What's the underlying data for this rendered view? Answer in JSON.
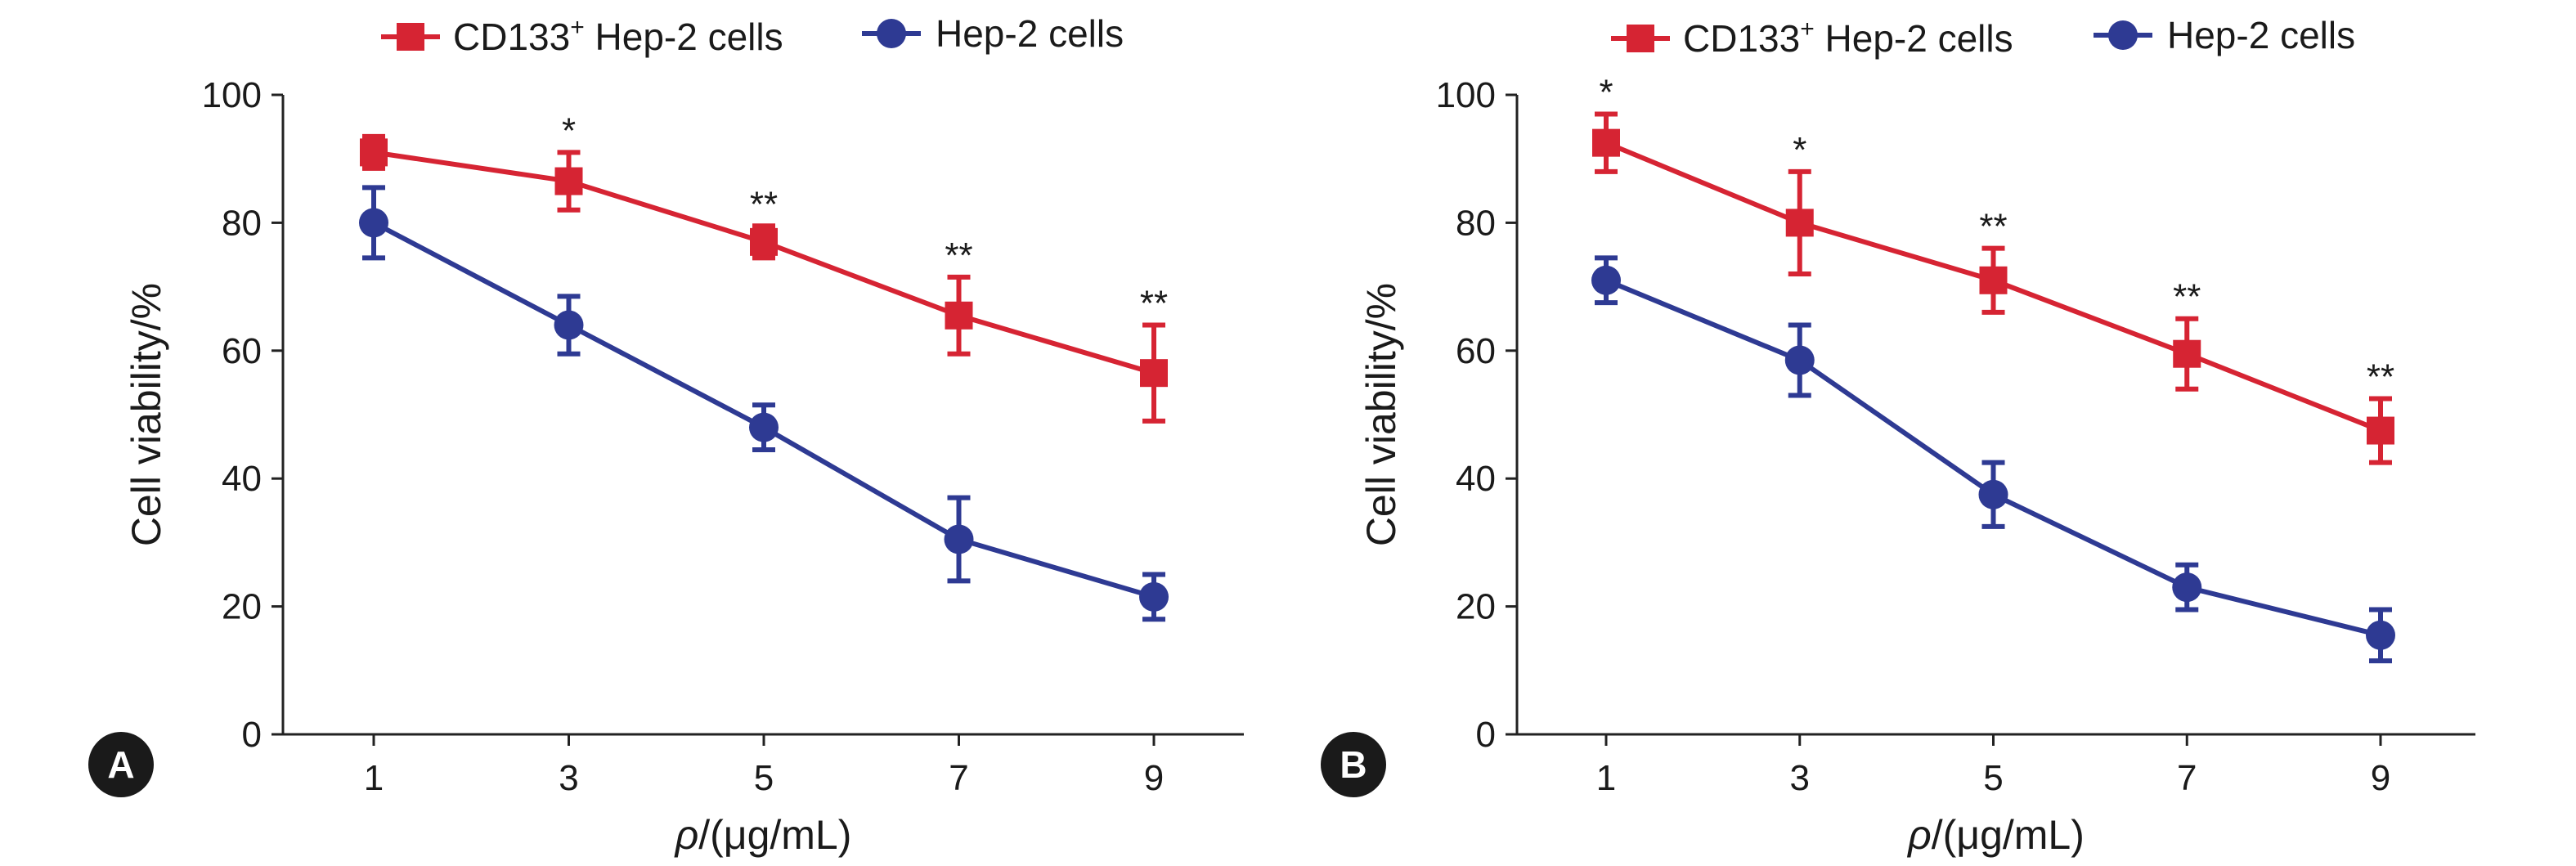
{
  "chart_data": [
    {
      "panel": "A",
      "type": "line",
      "xlabel_italic": "ρ",
      "xlabel_rest": "/(μg/mL)",
      "ylabel": "Cell viability/%",
      "x": [
        1,
        3,
        5,
        7,
        9
      ],
      "xlim": [
        0.1,
        9.9
      ],
      "ylim": [
        0,
        100
      ],
      "yticks": [
        0,
        20,
        40,
        60,
        80,
        100
      ],
      "series": [
        {
          "name": "CD133",
          "name_sup": "+",
          "name_rest": " Hep-2 cells",
          "color": "#d62433",
          "marker": "square",
          "values": [
            91,
            86.5,
            77,
            65.5,
            56.5
          ],
          "errors": [
            2.5,
            4.5,
            2.5,
            6,
            7.5
          ]
        },
        {
          "name": "Hep-2 cells",
          "color": "#2e3a93",
          "marker": "circle",
          "values": [
            80,
            64,
            48,
            30.5,
            21.5
          ],
          "errors": [
            5.5,
            4.5,
            3.5,
            6.5,
            3.5
          ]
        }
      ],
      "significance": [
        "",
        "*",
        "**",
        "**",
        "**"
      ]
    },
    {
      "panel": "B",
      "type": "line",
      "xlabel_italic": "ρ",
      "xlabel_rest": "/(μg/mL)",
      "ylabel": "Cell viability/%",
      "x": [
        1,
        3,
        5,
        7,
        9
      ],
      "xlim": [
        0.1,
        9.9
      ],
      "ylim": [
        0,
        100
      ],
      "yticks": [
        0,
        20,
        40,
        60,
        80,
        100
      ],
      "series": [
        {
          "name": "CD133",
          "name_sup": "+",
          "name_rest": " Hep-2 cells",
          "color": "#d62433",
          "marker": "square",
          "values": [
            92.5,
            80,
            71,
            59.5,
            47.5
          ],
          "errors": [
            4.5,
            8,
            5,
            5.5,
            5
          ]
        },
        {
          "name": "Hep-2 cells",
          "color": "#2e3a93",
          "marker": "circle",
          "values": [
            71,
            58.5,
            37.5,
            23,
            15.5
          ],
          "errors": [
            3.5,
            5.5,
            5,
            3.5,
            4
          ]
        }
      ],
      "significance": [
        "*",
        "*",
        "**",
        "**",
        "**"
      ]
    }
  ]
}
